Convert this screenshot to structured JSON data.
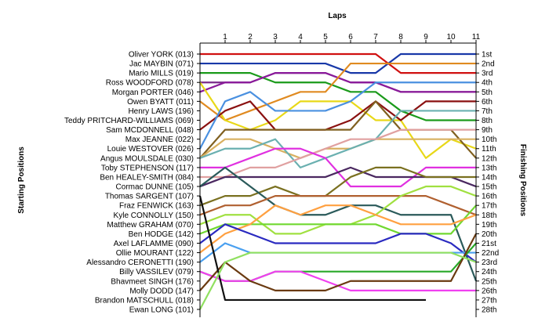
{
  "chart_data": {
    "type": "line",
    "title": "Laps",
    "xlabel": "Laps",
    "ylabel_left": "Starting Positions",
    "ylabel_right": "Finishing Positions",
    "laps": [
      1,
      2,
      3,
      4,
      5,
      6,
      7,
      8,
      9,
      10,
      11
    ],
    "xlim": [
      0,
      11
    ],
    "ylim": [
      1,
      28
    ],
    "y_inverted": true,
    "grid": false,
    "starting_labels": [
      "Oliver YORK (013)",
      "Jac MAYBIN (071)",
      "Mario MILLS (019)",
      "Ross WOODFORD (078)",
      "Morgan PORTER (046)",
      "Owen BYATT (011)",
      "Henry LAWS (196)",
      "Teddy PRITCHARD-WILLIAMS (069)",
      "Sam MCDONNELL (048)",
      "Max JEANNE (022)",
      "Louie WESTOVER (026)",
      "Angus  MOULSDALE  (030)",
      "Toby STEPHENSON (117)",
      "Ben HEALEY-SMITH (084)",
      "Cormac DUNNE (105)",
      "Thomas SARGENT (107)",
      "Fraz FENWICK (163)",
      "Kyle CONNOLLY (150)",
      "Matthew GRAHAM (070)",
      "Ben HODGE (142)",
      "Axel LAFLAMME (090)",
      "Ollie MOURANT (122)",
      "Alessandro CERONETTI (190)",
      "Billy VASSILEV (079)",
      "Bhavmeet SINGH (176)",
      "Molly DODD (147)",
      "Brandon MATSCHULL (018)",
      "Ewan LONG (101)"
    ],
    "finishing_labels": [
      "1st",
      "2nd",
      "3rd",
      "4th",
      "5th",
      "6th",
      "7th",
      "8th",
      "9th",
      "10th",
      "11th",
      "12th",
      "13th",
      "14th",
      "15th",
      "16th",
      "17th",
      "18th",
      "19th",
      "20th",
      "21st",
      "22nd",
      "23rd",
      "24th",
      "25th",
      "26th",
      "27th",
      "28th"
    ],
    "series": [
      {
        "color": "#d01010",
        "positions": [
          1,
          1,
          1,
          1,
          1,
          1,
          1,
          1,
          3,
          3,
          3,
          3
        ]
      },
      {
        "color": "#1838a8",
        "positions": [
          2,
          2,
          2,
          2,
          2,
          2,
          3,
          3,
          1,
          1,
          1,
          1
        ]
      },
      {
        "color": "#1a9a1a",
        "positions": [
          3,
          3,
          3,
          4,
          4,
          4,
          5,
          5,
          7,
          8,
          8,
          8
        ]
      },
      {
        "color": "#7a2a8a",
        "positions": [
          4,
          4,
          4,
          3,
          3,
          3,
          4,
          4,
          5,
          5,
          5,
          5
        ]
      },
      {
        "color": "#8a1a9a",
        "positions": [
          5,
          4,
          4,
          3,
          3,
          3,
          4,
          4,
          5,
          5,
          5,
          5
        ]
      },
      {
        "color": "#e08a20",
        "positions": [
          6,
          8,
          7,
          6,
          5,
          5,
          2,
          2,
          2,
          2,
          2,
          2
        ]
      },
      {
        "color": "#e8d818",
        "positions": [
          4,
          8,
          9,
          8,
          6,
          6,
          6,
          8,
          8,
          12,
          10,
          11
        ]
      },
      {
        "color": "#8a1010",
        "positions": [
          9,
          7,
          6,
          9,
          9,
          9,
          8,
          6,
          8,
          6,
          6,
          6
        ]
      },
      {
        "color": "#4a90e0",
        "positions": [
          11,
          6,
          5,
          7,
          7,
          7,
          6,
          4,
          4,
          4,
          4,
          4
        ]
      },
      {
        "color": "#806020",
        "positions": [
          12,
          9,
          9,
          9,
          9,
          9,
          9,
          6,
          9,
          9,
          9,
          12
        ]
      },
      {
        "color": "#d8b060",
        "positions": [
          12,
          10,
          10,
          11,
          12,
          11,
          11,
          10,
          10,
          10,
          10,
          10
        ]
      },
      {
        "color": "#6ab0b0",
        "positions": [
          12,
          11,
          11,
          10,
          13,
          12,
          11,
          10,
          7,
          7,
          7,
          7
        ]
      },
      {
        "color": "#e0a0a0",
        "positions": [
          14,
          14,
          13,
          13,
          12,
          11,
          10,
          10,
          9,
          9,
          9,
          9
        ]
      },
      {
        "color": "#e030e0",
        "positions": [
          13,
          13,
          12,
          11,
          11,
          12,
          15,
          15,
          15,
          13,
          13,
          13
        ]
      },
      {
        "color": "#4a2860",
        "positions": [
          15,
          14,
          14,
          14,
          14,
          14,
          13,
          14,
          14,
          14,
          14,
          15
        ]
      },
      {
        "color": "#7a7020",
        "positions": [
          17,
          16,
          16,
          15,
          16,
          16,
          14,
          13,
          13,
          14,
          14,
          14
        ]
      },
      {
        "color": "#2a5a5a",
        "positions": [
          15,
          13,
          15,
          17,
          18,
          18,
          17,
          17,
          18,
          18,
          18,
          25
        ]
      },
      {
        "color": "#b06030",
        "positions": [
          18,
          17,
          17,
          16,
          16,
          16,
          16,
          16,
          16,
          16,
          17,
          18
        ]
      },
      {
        "color": "#a0e040",
        "positions": [
          19,
          18,
          18,
          20,
          20,
          19,
          19,
          18,
          16,
          15,
          15,
          16
        ]
      },
      {
        "color": "#70d830",
        "positions": [
          20,
          19,
          19,
          19,
          19,
          19,
          19,
          19,
          20,
          20,
          20,
          17
        ]
      },
      {
        "color": "#ffa040",
        "positions": [
          22,
          20,
          19,
          17,
          18,
          17,
          17,
          18,
          19,
          19,
          19,
          18
        ]
      },
      {
        "color": "#2a2ac0",
        "positions": [
          21,
          19,
          20,
          21,
          21,
          21,
          21,
          21,
          20,
          20,
          21,
          23
        ]
      },
      {
        "color": "#4aa0f0",
        "positions": [
          23,
          21,
          22,
          22,
          22,
          22,
          22,
          22,
          22,
          22,
          22,
          22
        ]
      },
      {
        "color": "#28a828",
        "positions": [
          24,
          25,
          25,
          24,
          24,
          24,
          24,
          24,
          24,
          24,
          24,
          21
        ]
      },
      {
        "color": "#f040f0",
        "positions": [
          24,
          25,
          25,
          24,
          24,
          25,
          26,
          26,
          26,
          26,
          26,
          26
        ]
      },
      {
        "color": "#6a3a10",
        "positions": [
          26,
          23,
          25,
          26,
          26,
          26,
          25,
          25,
          25,
          25,
          25,
          20
        ]
      },
      {
        "color": "#101010",
        "positions": [
          16,
          27,
          27,
          27,
          27,
          27,
          27,
          27,
          27,
          27
        ]
      },
      {
        "color": "#90e060",
        "positions": [
          28,
          23,
          22,
          22,
          22,
          22,
          22,
          22,
          22,
          22,
          22,
          23
        ]
      }
    ]
  }
}
